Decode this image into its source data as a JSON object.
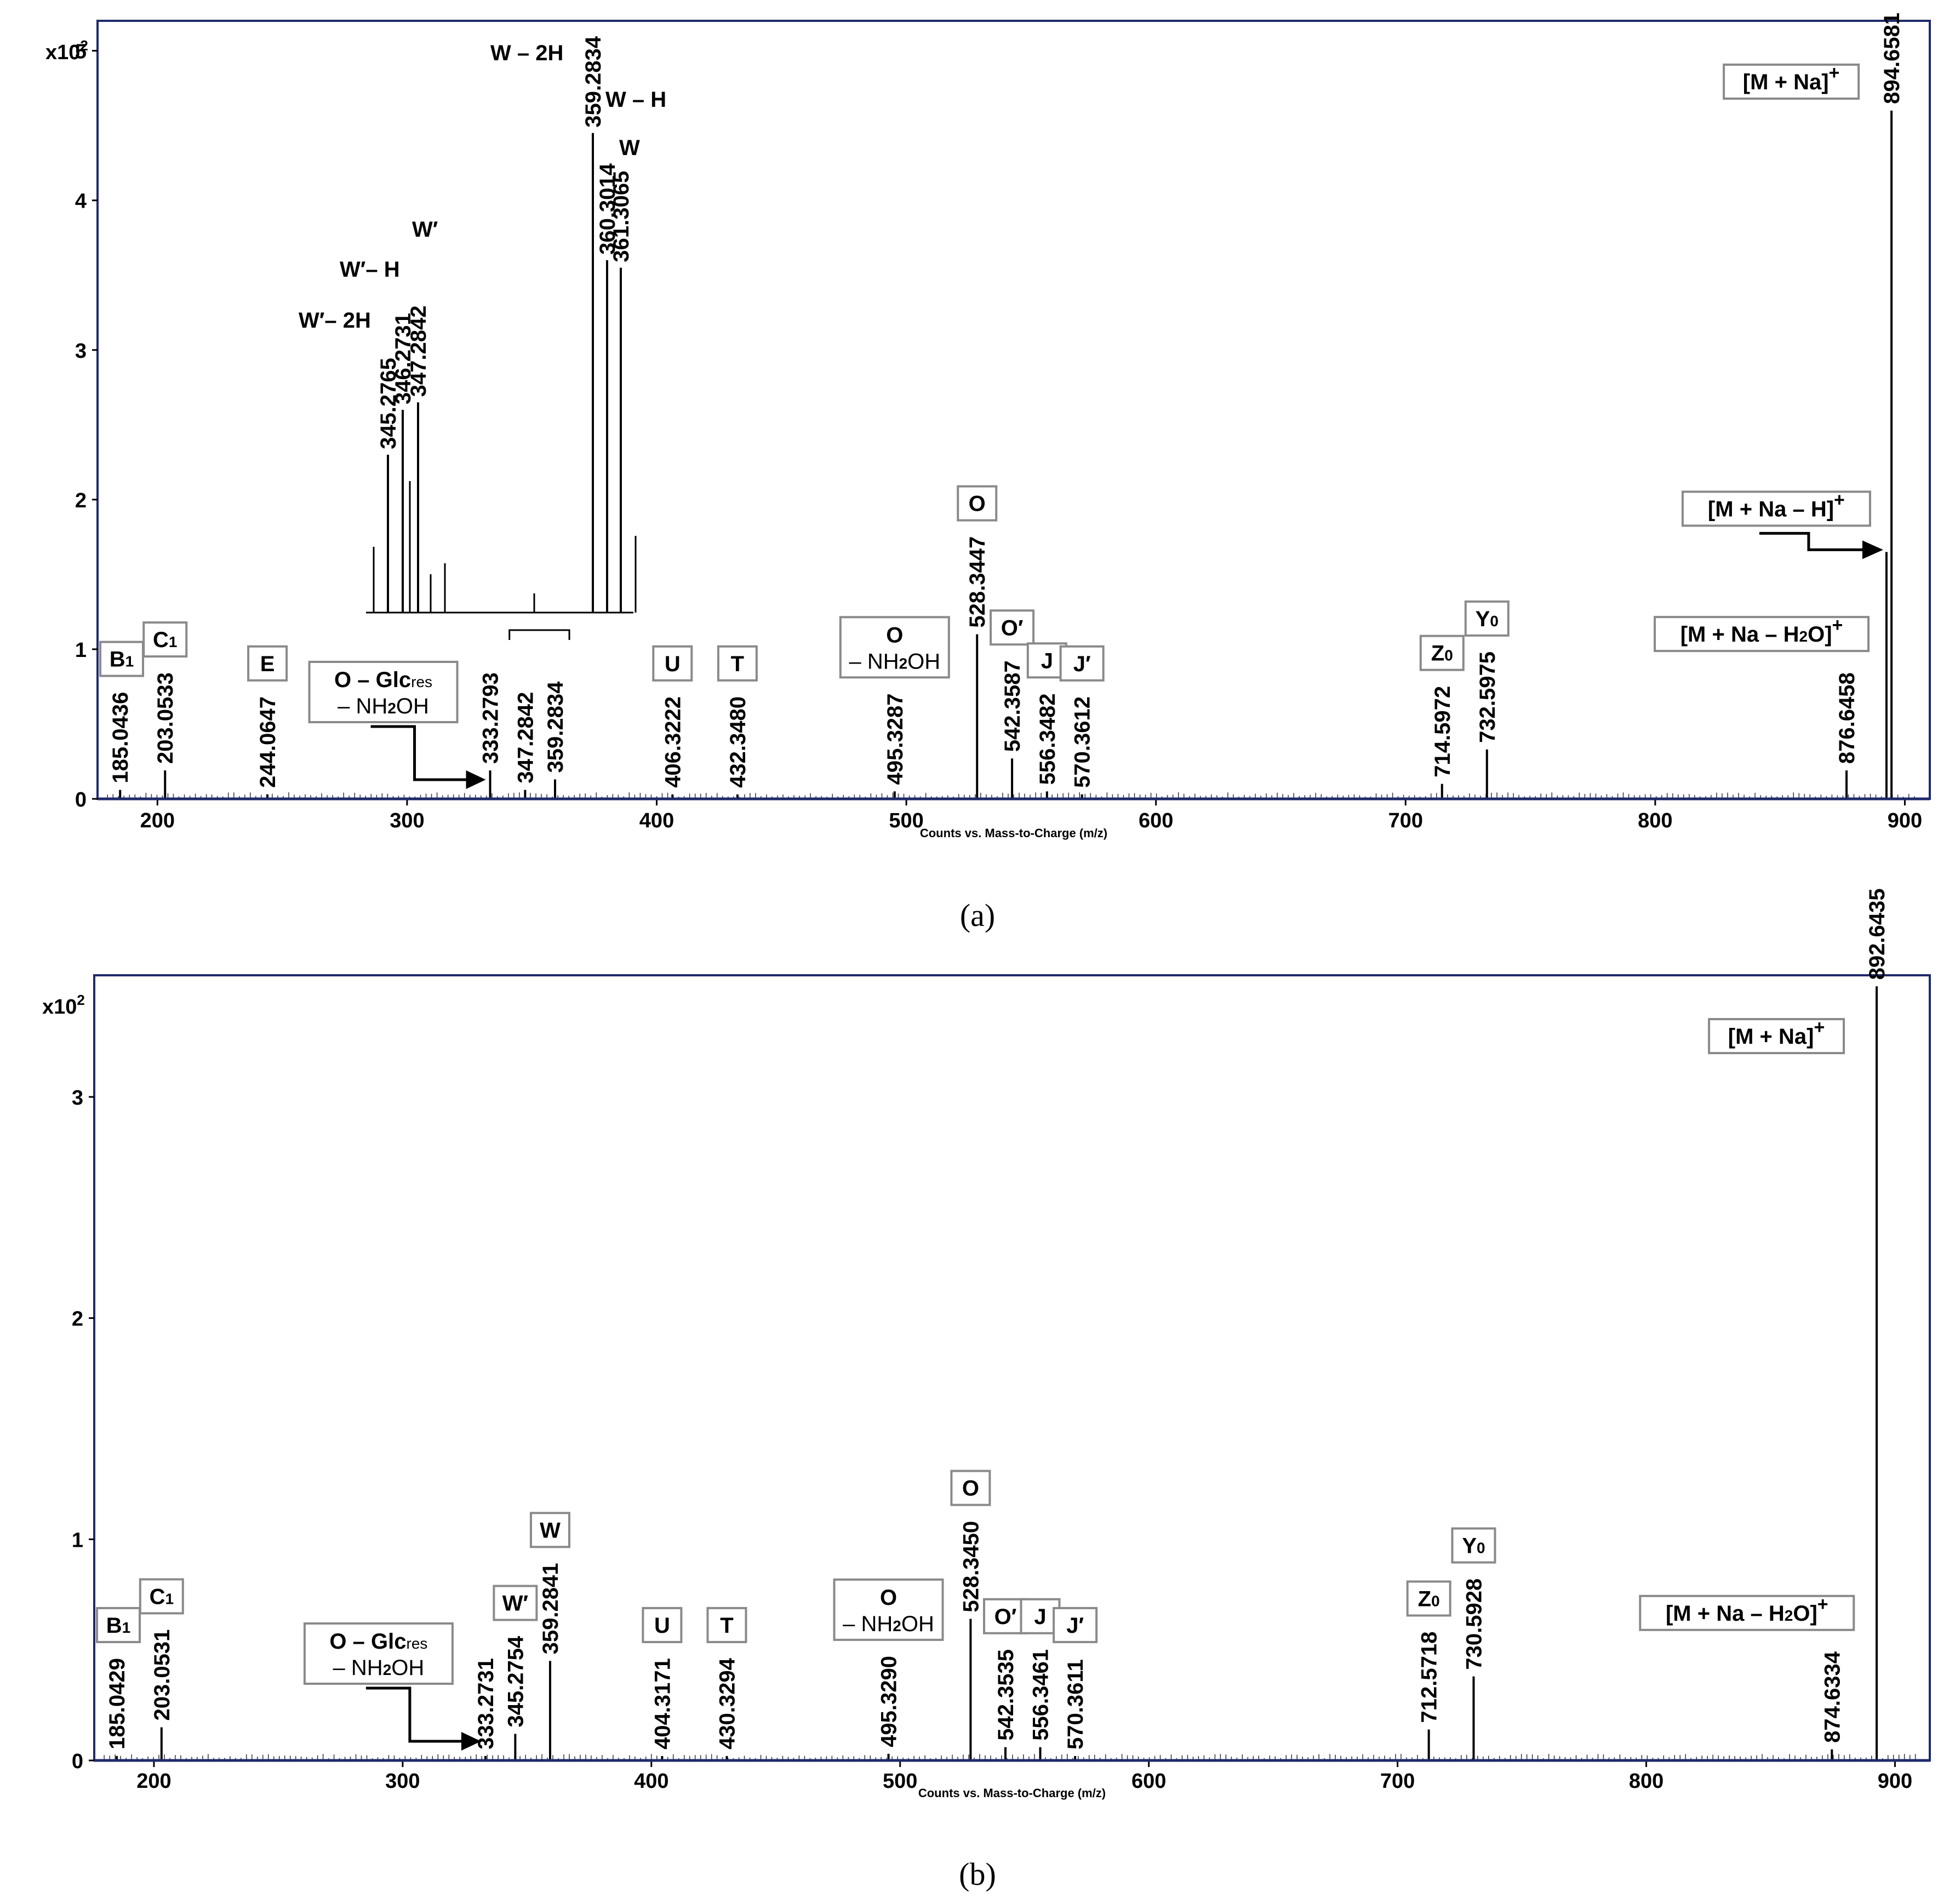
{
  "figure": {
    "captions": [
      "(a)",
      "(b)"
    ]
  },
  "colors": {
    "frame": "#1f2a6b",
    "peak": "#000000",
    "box_stroke": "#8a8a8a"
  },
  "chart_data": [
    {
      "type": "bar",
      "panel": "a",
      "caption": "(a)",
      "xlabel": "Counts vs. Mass-to-Charge (m/z)",
      "ylabel_multiplier": "x10²",
      "xlim": [
        176,
        910
      ],
      "ylim": [
        0,
        5.2
      ],
      "xticks": [
        200,
        300,
        400,
        500,
        600,
        700,
        800,
        900
      ],
      "yticks": [
        0,
        1,
        2,
        3,
        4,
        5
      ],
      "peaks": [
        {
          "mz": 185.0436,
          "label": "185.0436",
          "intensity": 0.06
        },
        {
          "mz": 203.0533,
          "label": "203.0533",
          "intensity": 0.19
        },
        {
          "mz": 244.0647,
          "label": "244.0647",
          "intensity": 0.03
        },
        {
          "mz": 333.2793,
          "label": "333.2793",
          "intensity": 0.19
        },
        {
          "mz": 347.2842,
          "label": "347.2842",
          "intensity": 0.06
        },
        {
          "mz": 359.2834,
          "label": "359.2834",
          "intensity": 0.13
        },
        {
          "mz": 406.3222,
          "label": "406.3222",
          "intensity": 0.03
        },
        {
          "mz": 432.348,
          "label": "432.3480",
          "intensity": 0.03
        },
        {
          "mz": 495.3287,
          "label": "495.3287",
          "intensity": 0.05
        },
        {
          "mz": 528.3447,
          "label": "528.3447",
          "intensity": 1.1
        },
        {
          "mz": 542.3587,
          "label": "542.3587",
          "intensity": 0.27
        },
        {
          "mz": 556.3482,
          "label": "556.3482",
          "intensity": 0.05
        },
        {
          "mz": 570.3612,
          "label": "570.3612",
          "intensity": 0.03
        },
        {
          "mz": 714.5972,
          "label": "714.5972",
          "intensity": 0.1
        },
        {
          "mz": 732.5975,
          "label": "732.5975",
          "intensity": 0.33
        },
        {
          "mz": 876.6458,
          "label": "876.6458",
          "intensity": 0.19
        },
        {
          "mz": 892.6435,
          "label": "",
          "intensity": 1.65
        },
        {
          "mz": 894.6581,
          "label": "894.6581",
          "intensity": 4.6
        }
      ],
      "ion_labels": [
        {
          "text": "B1",
          "boxed": true,
          "near_mz": 185.0436
        },
        {
          "text": "C1",
          "boxed": true,
          "near_mz": 203.0533
        },
        {
          "text": "E",
          "boxed": true,
          "near_mz": 244.0647
        },
        {
          "text": "O – Glcres",
          "text2": "– NH2OH",
          "boxed": true,
          "near_mz": 333.2793
        },
        {
          "text": "U",
          "boxed": true,
          "near_mz": 406.3222
        },
        {
          "text": "T",
          "boxed": true,
          "near_mz": 432.348
        },
        {
          "text": "O",
          "text2": "– NH2OH",
          "boxed": true,
          "near_mz": 495.3287
        },
        {
          "text": "O",
          "boxed": true,
          "near_mz": 528.3447
        },
        {
          "text": "O′",
          "boxed": true,
          "near_mz": 542.3587
        },
        {
          "text": "J",
          "boxed": true,
          "near_mz": 556.3482
        },
        {
          "text": "J′",
          "boxed": true,
          "near_mz": 570.3612
        },
        {
          "text": "Z0",
          "boxed": true,
          "near_mz": 714.5972
        },
        {
          "text": "Y0",
          "boxed": true,
          "near_mz": 732.5975
        },
        {
          "text": "[M + Na – H2O]+",
          "boxed": true,
          "near_mz": 876.6458
        },
        {
          "text": "[M + Na – H]+",
          "boxed": true,
          "near_mz": 892.6435
        },
        {
          "text": "[M + Na]+",
          "boxed": true,
          "near_mz": 894.6581
        }
      ],
      "inset": {
        "zoom_range_mz": [
          341,
          365
        ],
        "peaks": [
          {
            "label": "345.2765",
            "intensity": 2.3
          },
          {
            "label": "346.2731",
            "intensity": 2.6
          },
          {
            "label": "347.2842",
            "intensity": 2.65
          },
          {
            "label": "359.2834",
            "intensity": 4.45
          },
          {
            "label": "360.3014",
            "intensity": 3.6
          },
          {
            "label": "361.3065",
            "intensity": 3.55
          }
        ],
        "ion_labels": [
          "W′– 2H",
          "W′– H",
          "W′",
          "W – 2H",
          "W – H",
          "W"
        ]
      }
    },
    {
      "type": "bar",
      "panel": "b",
      "caption": "(b)",
      "xlabel": "Counts vs. Mass-to-Charge (m/z)",
      "ylabel_multiplier": "x10²",
      "xlim": [
        176,
        914
      ],
      "ylim": [
        0,
        3.55
      ],
      "xticks": [
        200,
        300,
        400,
        500,
        600,
        700,
        800,
        900
      ],
      "yticks": [
        0,
        1,
        2,
        3
      ],
      "peaks": [
        {
          "mz": 185.0429,
          "label": "185.0429",
          "intensity": 0.02
        },
        {
          "mz": 203.0531,
          "label": "203.0531",
          "intensity": 0.15
        },
        {
          "mz": 333.2731,
          "label": "333.2731",
          "intensity": 0.02
        },
        {
          "mz": 345.2754,
          "label": "345.2754",
          "intensity": 0.12
        },
        {
          "mz": 359.2841,
          "label": "359.2841",
          "intensity": 0.45
        },
        {
          "mz": 404.3171,
          "label": "404.3171",
          "intensity": 0.02
        },
        {
          "mz": 430.3294,
          "label": "430.3294",
          "intensity": 0.02
        },
        {
          "mz": 495.329,
          "label": "495.3290",
          "intensity": 0.03
        },
        {
          "mz": 528.345,
          "label": "528.3450",
          "intensity": 0.64
        },
        {
          "mz": 542.3535,
          "label": "542.3535",
          "intensity": 0.06
        },
        {
          "mz": 556.3461,
          "label": "556.3461",
          "intensity": 0.06
        },
        {
          "mz": 570.3611,
          "label": "570.3611",
          "intensity": 0.02
        },
        {
          "mz": 712.5718,
          "label": "712.5718",
          "intensity": 0.14
        },
        {
          "mz": 730.5928,
          "label": "730.5928",
          "intensity": 0.38
        },
        {
          "mz": 874.6334,
          "label": "874.6334",
          "intensity": 0.05
        },
        {
          "mz": 892.6435,
          "label": "892.6435",
          "intensity": 3.5
        }
      ],
      "ion_labels": [
        {
          "text": "B1",
          "boxed": true,
          "near_mz": 185.0429
        },
        {
          "text": "C1",
          "boxed": true,
          "near_mz": 203.0531
        },
        {
          "text": "O – Glcres",
          "text2": "– NH2OH",
          "boxed": true,
          "near_mz": 333.2731
        },
        {
          "text": "W′",
          "boxed": true,
          "near_mz": 345.2754
        },
        {
          "text": "W",
          "boxed": true,
          "near_mz": 359.2841
        },
        {
          "text": "U",
          "boxed": true,
          "near_mz": 404.3171
        },
        {
          "text": "T",
          "boxed": true,
          "near_mz": 430.3294
        },
        {
          "text": "O",
          "text2": "– NH2OH",
          "boxed": true,
          "near_mz": 495.329
        },
        {
          "text": "O",
          "boxed": true,
          "near_mz": 528.345
        },
        {
          "text": "O′",
          "boxed": true,
          "near_mz": 542.3535
        },
        {
          "text": "J",
          "boxed": true,
          "near_mz": 556.3461
        },
        {
          "text": "J′",
          "boxed": true,
          "near_mz": 570.3611
        },
        {
          "text": "Z0",
          "boxed": true,
          "near_mz": 712.5718
        },
        {
          "text": "Y0",
          "boxed": true,
          "near_mz": 730.5928
        },
        {
          "text": "[M + Na – H2O]+",
          "boxed": true,
          "near_mz": 874.6334
        },
        {
          "text": "[M + Na]+",
          "boxed": true,
          "near_mz": 892.6435
        }
      ]
    }
  ]
}
